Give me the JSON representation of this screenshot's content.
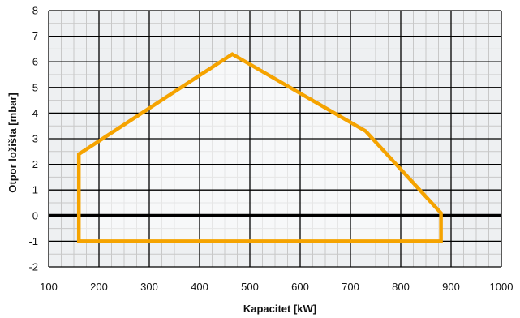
{
  "chart_data": {
    "type": "area",
    "title": "",
    "xlabel": "Kapacitet [kW]",
    "ylabel": "Otpor ložišta  [mbar]",
    "xlim": [
      100,
      1000
    ],
    "ylim": [
      -2,
      8
    ],
    "x_ticks": [
      100,
      200,
      300,
      400,
      500,
      600,
      700,
      800,
      900,
      1000
    ],
    "x_tick_labels": [
      "100",
      "200",
      "300",
      "400",
      "500",
      "600",
      "700",
      "800",
      "900",
      "1000"
    ],
    "y_ticks": [
      -2,
      -1,
      0,
      1,
      2,
      3,
      4,
      5,
      6,
      7,
      8
    ],
    "y_tick_labels": [
      "-2",
      "-1",
      "0",
      "1",
      "2",
      "3",
      "4",
      "5",
      "6",
      "7",
      "8"
    ],
    "grid": true,
    "grid_minor_step": {
      "x": 25,
      "y": 0.5
    },
    "baseline_y": 0,
    "series": [
      {
        "points": [
          {
            "x": 160,
            "y": -1
          },
          {
            "x": 160,
            "y": 2.4
          },
          {
            "x": 465,
            "y": 6.3
          },
          {
            "x": 730,
            "y": 3.3
          },
          {
            "x": 880,
            "y": 0.1
          },
          {
            "x": 880,
            "y": -1
          }
        ]
      }
    ],
    "colors": {
      "plot_background": "#eef0f2",
      "grid_major": "#000000",
      "grid_minor": "#c8c8c8",
      "baseline": "#000000",
      "outline": "#f5a300",
      "fill": "#ffffff"
    }
  }
}
